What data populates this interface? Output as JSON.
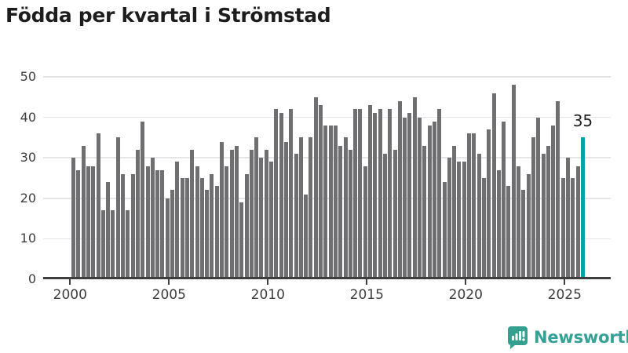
{
  "chart_data": {
    "type": "bar",
    "title": "Födda per kvartal i Strömstad",
    "frequency": "quarterly",
    "start_period": "2000-Q1",
    "end_period": "2025-Q4",
    "x_tick_labels": [
      "2000",
      "2005",
      "2010",
      "2015",
      "2020",
      "2025"
    ],
    "y_tick_labels": [
      "0",
      "10",
      "20",
      "30",
      "40",
      "50"
    ],
    "ylim": [
      0,
      50
    ],
    "grid": true,
    "legend": "none",
    "values": [
      30,
      27,
      33,
      28,
      28,
      36,
      17,
      24,
      17,
      35,
      26,
      17,
      26,
      32,
      39,
      28,
      30,
      27,
      27,
      20,
      22,
      29,
      25,
      25,
      32,
      28,
      25,
      22,
      26,
      23,
      34,
      28,
      32,
      33,
      19,
      26,
      32,
      35,
      30,
      32,
      29,
      42,
      41,
      34,
      42,
      31,
      35,
      21,
      35,
      45,
      43,
      38,
      38,
      38,
      33,
      35,
      32,
      42,
      42,
      28,
      43,
      41,
      42,
      31,
      42,
      32,
      44,
      40,
      41,
      45,
      40,
      33,
      38,
      39,
      42,
      24,
      30,
      33,
      29,
      29,
      36,
      36,
      31,
      25,
      37,
      46,
      27,
      39,
      23,
      48,
      28,
      22,
      26,
      35,
      40,
      31,
      33,
      38,
      44,
      25,
      30,
      25,
      28,
      35
    ],
    "highlight_last_bar": true,
    "annotation": {
      "text": "35",
      "value": 35
    },
    "colors": {
      "bar": "#6f6f72",
      "highlight": "#00a3a8",
      "grid": "#e5e5e5",
      "axis": "#3f3f3f",
      "tick_label": "#3d3d3d",
      "title": "#1d1d1d",
      "annotation": "#222222"
    }
  },
  "branding": {
    "logo_text": "Newsworthy",
    "logo_color": "#35a095",
    "icon": "newsworthy-logo-icon"
  }
}
